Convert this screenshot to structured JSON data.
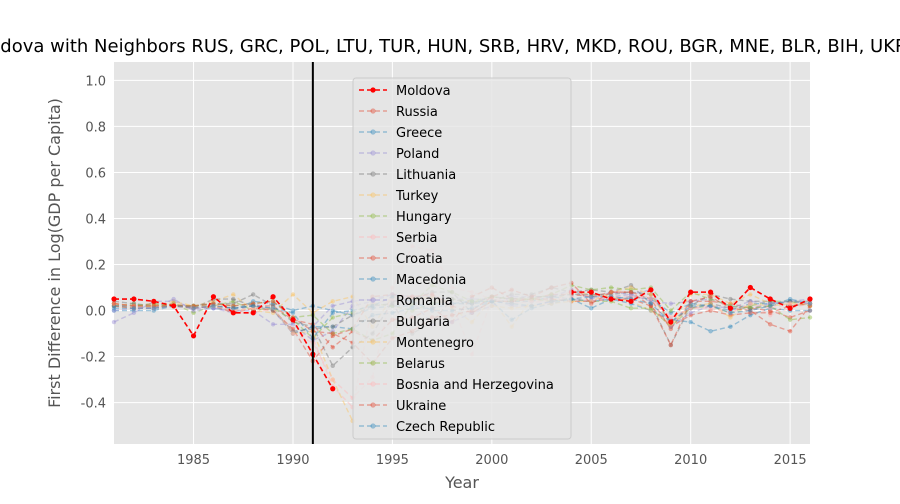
{
  "chart_data": {
    "type": "line",
    "title": "Moldova with Neighbors RUS, GRC, POL, LTU, TUR, HUN, SRB, HRV, MKD, ROU, BGR, MNE, BLR, BIH, UKR, CZE",
    "xlabel": "Year",
    "ylabel": "First Difference in Log(GDP per Capita)",
    "xlim": [
      1981,
      2016
    ],
    "ylim": [
      -0.58,
      1.08
    ],
    "xticks": [
      1985,
      1990,
      1995,
      2000,
      2005,
      2010,
      2015
    ],
    "yticks": [
      -0.4,
      -0.2,
      0.0,
      0.2,
      0.4,
      0.6,
      0.8,
      1.0
    ],
    "grid": true,
    "legend_position": "top-center",
    "vline_x": 1991,
    "x": [
      1981,
      1982,
      1983,
      1984,
      1985,
      1986,
      1987,
      1988,
      1989,
      1990,
      1991,
      1992,
      1993,
      1994,
      1995,
      1996,
      1997,
      1998,
      1999,
      2000,
      2001,
      2002,
      2003,
      2004,
      2005,
      2006,
      2007,
      2008,
      2009,
      2010,
      2011,
      2012,
      2013,
      2014,
      2015,
      2016
    ],
    "series": [
      {
        "name": "Moldova",
        "color": "#ff0000",
        "highlight": true,
        "values": [
          0.05,
          0.05,
          0.04,
          0.02,
          -0.11,
          0.06,
          -0.01,
          -0.01,
          0.06,
          -0.04,
          -0.19,
          -0.34,
          null,
          null,
          null,
          null,
          null,
          null,
          null,
          null,
          null,
          null,
          null,
          0.08,
          0.08,
          0.05,
          0.04,
          0.09,
          -0.05,
          0.08,
          0.08,
          0.01,
          0.1,
          0.05,
          0.01,
          0.05
        ]
      },
      {
        "name": "Russia",
        "color": "#e24a33",
        "values": [
          0.03,
          0.02,
          0.03,
          0.02,
          0.01,
          0.02,
          0.01,
          0.02,
          0.02,
          -0.04,
          -0.06,
          -0.16,
          -0.09,
          -0.13,
          -0.04,
          -0.03,
          0.01,
          -0.05,
          0.06,
          0.1,
          0.05,
          0.05,
          0.07,
          0.07,
          0.06,
          0.08,
          0.08,
          0.05,
          -0.08,
          0.04,
          0.04,
          0.03,
          0.01,
          0.0,
          -0.03,
          0.0
        ]
      },
      {
        "name": "Greece",
        "color": "#348abd",
        "values": [
          0.0,
          0.0,
          0.0,
          0.02,
          0.02,
          0.01,
          0.0,
          0.04,
          0.03,
          0.0,
          0.02,
          0.0,
          -0.02,
          0.01,
          0.02,
          0.02,
          0.03,
          0.03,
          0.03,
          0.04,
          0.04,
          0.04,
          0.06,
          0.05,
          0.01,
          0.05,
          0.03,
          0.0,
          -0.04,
          -0.05,
          -0.09,
          -0.07,
          -0.02,
          0.01,
          0.0,
          0.0
        ]
      },
      {
        "name": "Poland",
        "color": "#988ed5",
        "values": [
          -0.05,
          -0.01,
          0.04,
          0.04,
          0.01,
          0.01,
          -0.01,
          0.03,
          0.0,
          -0.1,
          -0.07,
          0.02,
          0.04,
          0.05,
          0.07,
          0.06,
          0.06,
          0.05,
          0.05,
          0.05,
          0.02,
          0.02,
          0.04,
          0.05,
          0.04,
          0.06,
          0.07,
          0.04,
          0.03,
          0.04,
          0.05,
          0.02,
          0.01,
          0.03,
          0.04,
          0.03
        ]
      },
      {
        "name": "Lithuania",
        "color": "#777777",
        "values": [
          0.02,
          0.02,
          0.02,
          0.02,
          0.02,
          0.03,
          0.03,
          0.07,
          0.02,
          -0.05,
          -0.07,
          -0.24,
          -0.16,
          -0.1,
          0.04,
          0.05,
          0.08,
          0.08,
          -0.01,
          0.04,
          0.07,
          0.07,
          0.1,
          0.08,
          0.09,
          0.08,
          0.11,
          0.03,
          -0.15,
          0.02,
          0.07,
          0.05,
          0.04,
          0.04,
          0.02,
          0.03
        ]
      },
      {
        "name": "Turkey",
        "color": "#fbc15e",
        "values": [
          0.02,
          0.01,
          0.02,
          0.04,
          0.02,
          0.04,
          0.07,
          0.0,
          -0.01,
          0.07,
          -0.01,
          0.04,
          0.06,
          -0.07,
          0.06,
          0.05,
          0.06,
          0.01,
          -0.05,
          0.05,
          -0.07,
          0.05,
          0.04,
          0.08,
          0.07,
          0.06,
          0.04,
          0.0,
          -0.06,
          0.07,
          0.07,
          0.03,
          0.07,
          0.03,
          0.04,
          0.02
        ]
      },
      {
        "name": "Hungary",
        "color": "#8eba42",
        "values": [
          0.02,
          0.03,
          0.01,
          0.03,
          -0.01,
          0.02,
          0.04,
          0.0,
          0.01,
          -0.04,
          -0.12,
          -0.03,
          -0.01,
          0.03,
          0.02,
          0.0,
          0.03,
          0.05,
          0.04,
          0.04,
          0.04,
          0.05,
          0.04,
          0.05,
          0.04,
          0.04,
          0.01,
          0.01,
          -0.07,
          0.01,
          0.02,
          -0.01,
          0.02,
          0.04,
          0.04,
          0.02
        ]
      },
      {
        "name": "Serbia",
        "color": "#ffb5b8",
        "values": [
          0.03,
          0.02,
          0.01,
          0.02,
          0.01,
          0.03,
          -0.01,
          -0.01,
          0.01,
          -0.09,
          -0.12,
          -0.33,
          -0.42,
          0.03,
          0.05,
          0.06,
          0.07,
          0.03,
          -0.19,
          0.05,
          0.05,
          0.04,
          0.03,
          0.09,
          0.06,
          0.05,
          0.06,
          0.06,
          -0.03,
          0.01,
          0.02,
          -0.01,
          0.03,
          -0.02,
          0.01,
          0.03
        ]
      },
      {
        "name": "Croatia",
        "color": "#e24a33",
        "values": [
          0.02,
          0.01,
          0.01,
          0.02,
          0.01,
          0.02,
          -0.01,
          0.01,
          0.0,
          -0.08,
          -0.22,
          -0.11,
          -0.08,
          0.06,
          0.07,
          0.06,
          0.07,
          0.02,
          -0.01,
          0.04,
          0.04,
          0.05,
          0.05,
          0.04,
          0.04,
          0.05,
          0.05,
          0.02,
          -0.07,
          -0.02,
          0.0,
          -0.02,
          -0.01,
          -0.01,
          0.02,
          0.03
        ]
      },
      {
        "name": "Macedonia",
        "color": "#348abd",
        "values": [
          0.02,
          0.02,
          0.01,
          0.02,
          0.02,
          0.02,
          0.01,
          0.02,
          0.01,
          -0.1,
          -0.07,
          -0.07,
          -0.08,
          -0.02,
          -0.01,
          0.01,
          0.01,
          0.03,
          0.04,
          0.04,
          -0.04,
          0.01,
          0.03,
          0.05,
          0.04,
          0.05,
          0.06,
          0.05,
          -0.01,
          0.03,
          0.02,
          0.0,
          0.03,
          0.03,
          0.04,
          0.03
        ]
      },
      {
        "name": "Romania",
        "color": "#988ed5",
        "values": [
          0.0,
          0.01,
          0.01,
          0.05,
          0.0,
          0.01,
          0.0,
          0.0,
          -0.06,
          -0.06,
          -0.13,
          -0.09,
          0.02,
          0.04,
          0.07,
          0.04,
          -0.06,
          -0.05,
          -0.01,
          0.02,
          0.06,
          0.06,
          0.06,
          0.09,
          0.05,
          0.08,
          0.07,
          0.09,
          -0.07,
          -0.01,
          0.02,
          0.01,
          0.04,
          0.03,
          0.04,
          0.05
        ]
      },
      {
        "name": "Bulgaria",
        "color": "#777777",
        "values": [
          0.04,
          0.03,
          0.02,
          0.03,
          0.01,
          0.05,
          0.05,
          0.02,
          0.0,
          -0.09,
          -0.08,
          -0.07,
          -0.02,
          0.02,
          0.03,
          -0.1,
          -0.05,
          0.05,
          0.03,
          0.06,
          0.05,
          0.06,
          0.06,
          0.07,
          0.07,
          0.07,
          0.08,
          0.07,
          -0.05,
          0.01,
          0.03,
          0.01,
          0.01,
          0.02,
          0.04,
          0.04
        ]
      },
      {
        "name": "Montenegro",
        "color": "#fbc15e",
        "values": [
          0.03,
          0.02,
          0.02,
          0.03,
          0.02,
          0.02,
          0.0,
          0.01,
          0.01,
          -0.1,
          -0.09,
          -0.3,
          -0.48,
          null,
          null,
          null,
          null,
          null,
          null,
          0.02,
          0.01,
          0.02,
          0.03,
          0.04,
          0.04,
          0.08,
          0.1,
          0.07,
          -0.06,
          0.02,
          0.03,
          -0.03,
          0.03,
          0.02,
          0.03,
          0.03
        ]
      },
      {
        "name": "Belarus",
        "color": "#8eba42",
        "values": [
          0.03,
          0.02,
          0.03,
          0.02,
          0.02,
          0.03,
          0.02,
          0.03,
          0.04,
          -0.03,
          -0.02,
          -0.1,
          -0.08,
          -0.13,
          -0.1,
          0.03,
          0.11,
          0.08,
          0.04,
          0.06,
          0.05,
          0.05,
          0.07,
          0.11,
          0.09,
          0.1,
          0.09,
          0.1,
          0.0,
          0.08,
          0.05,
          0.02,
          0.01,
          0.02,
          -0.04,
          -0.03
        ]
      },
      {
        "name": "Bosnia and Herzegovina",
        "color": "#ffb5b8",
        "values": [
          0.03,
          0.02,
          0.01,
          0.02,
          0.01,
          0.02,
          0.0,
          0.01,
          0.01,
          -0.1,
          -0.14,
          -0.3,
          -0.38,
          -0.29,
          0.1,
          0.28,
          0.26,
          0.1,
          0.08,
          0.05,
          0.03,
          0.04,
          0.04,
          0.06,
          0.04,
          0.06,
          0.06,
          0.05,
          -0.03,
          0.01,
          0.01,
          -0.01,
          0.03,
          0.01,
          0.03,
          0.03
        ]
      },
      {
        "name": "Ukraine",
        "color": "#e24a33",
        "values": [
          0.03,
          0.02,
          0.02,
          0.02,
          0.02,
          0.03,
          0.02,
          0.03,
          0.04,
          -0.03,
          -0.09,
          -0.1,
          -0.14,
          -0.23,
          -0.12,
          -0.09,
          -0.03,
          -0.02,
          0.0,
          0.06,
          0.09,
          0.06,
          0.1,
          0.12,
          0.03,
          0.08,
          0.08,
          0.02,
          -0.15,
          0.04,
          0.06,
          0.01,
          0.0,
          -0.06,
          -0.09,
          0.02
        ]
      },
      {
        "name": "Czech Republic",
        "color": "#348abd",
        "values": [
          0.01,
          0.01,
          0.01,
          0.02,
          0.01,
          0.02,
          0.01,
          0.02,
          0.01,
          -0.01,
          -0.12,
          -0.01,
          0.0,
          0.02,
          0.06,
          0.04,
          0.0,
          0.0,
          0.01,
          0.04,
          0.03,
          0.02,
          0.04,
          0.05,
          0.06,
          0.06,
          0.05,
          0.03,
          -0.05,
          0.02,
          0.02,
          -0.01,
          0.0,
          0.02,
          0.05,
          0.03
        ]
      }
    ]
  }
}
